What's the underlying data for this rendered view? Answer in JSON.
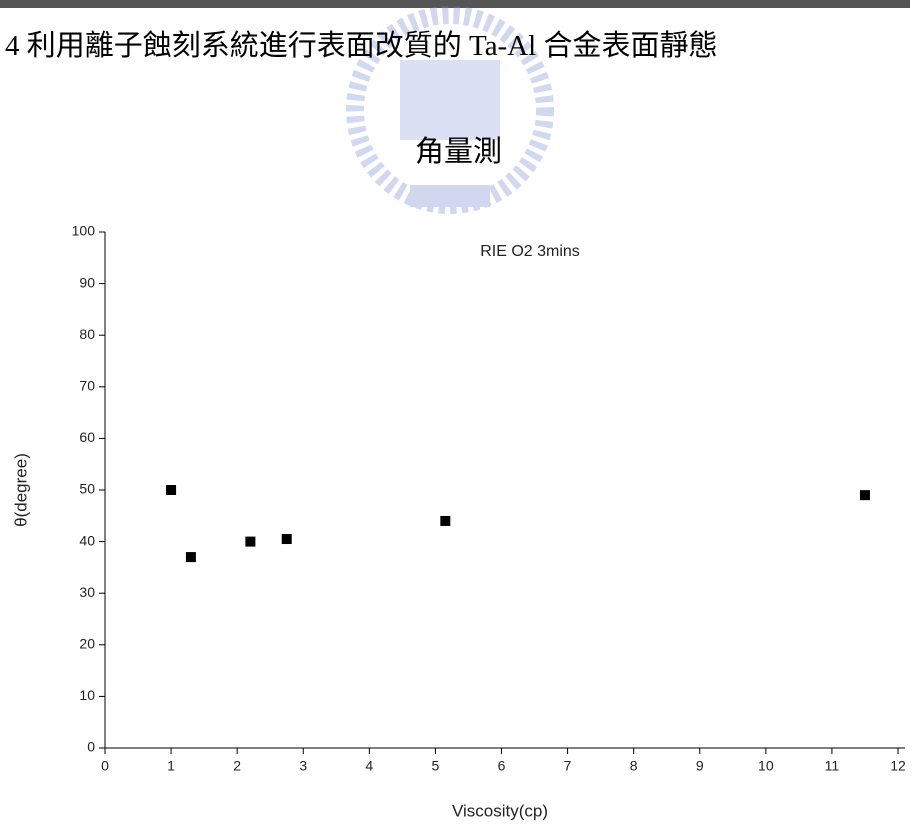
{
  "caption": [
    "4 利用離子蝕刻系統進行表面改質的 Ta-Al 合金表面靜態",
    "角量測"
  ],
  "chart_data": {
    "type": "scatter",
    "title": "RIE O2 3mins",
    "x_label": "Viscosity(cp)",
    "y_label": "θ(degree)",
    "x": [
      1.0,
      1.3,
      2.2,
      2.75,
      5.15,
      11.5
    ],
    "values": [
      50,
      37,
      40,
      40.5,
      44,
      49
    ],
    "color": "#000000",
    "xlim": [
      0,
      12
    ],
    "xticks": [
      0,
      1,
      2,
      3,
      4,
      5,
      6,
      7,
      8,
      9,
      10,
      11,
      12
    ],
    "ylim": [
      0,
      100
    ],
    "yticks": [
      0,
      10,
      20,
      30,
      40,
      50,
      60,
      70,
      80,
      90,
      100
    ],
    "grid": false
  }
}
